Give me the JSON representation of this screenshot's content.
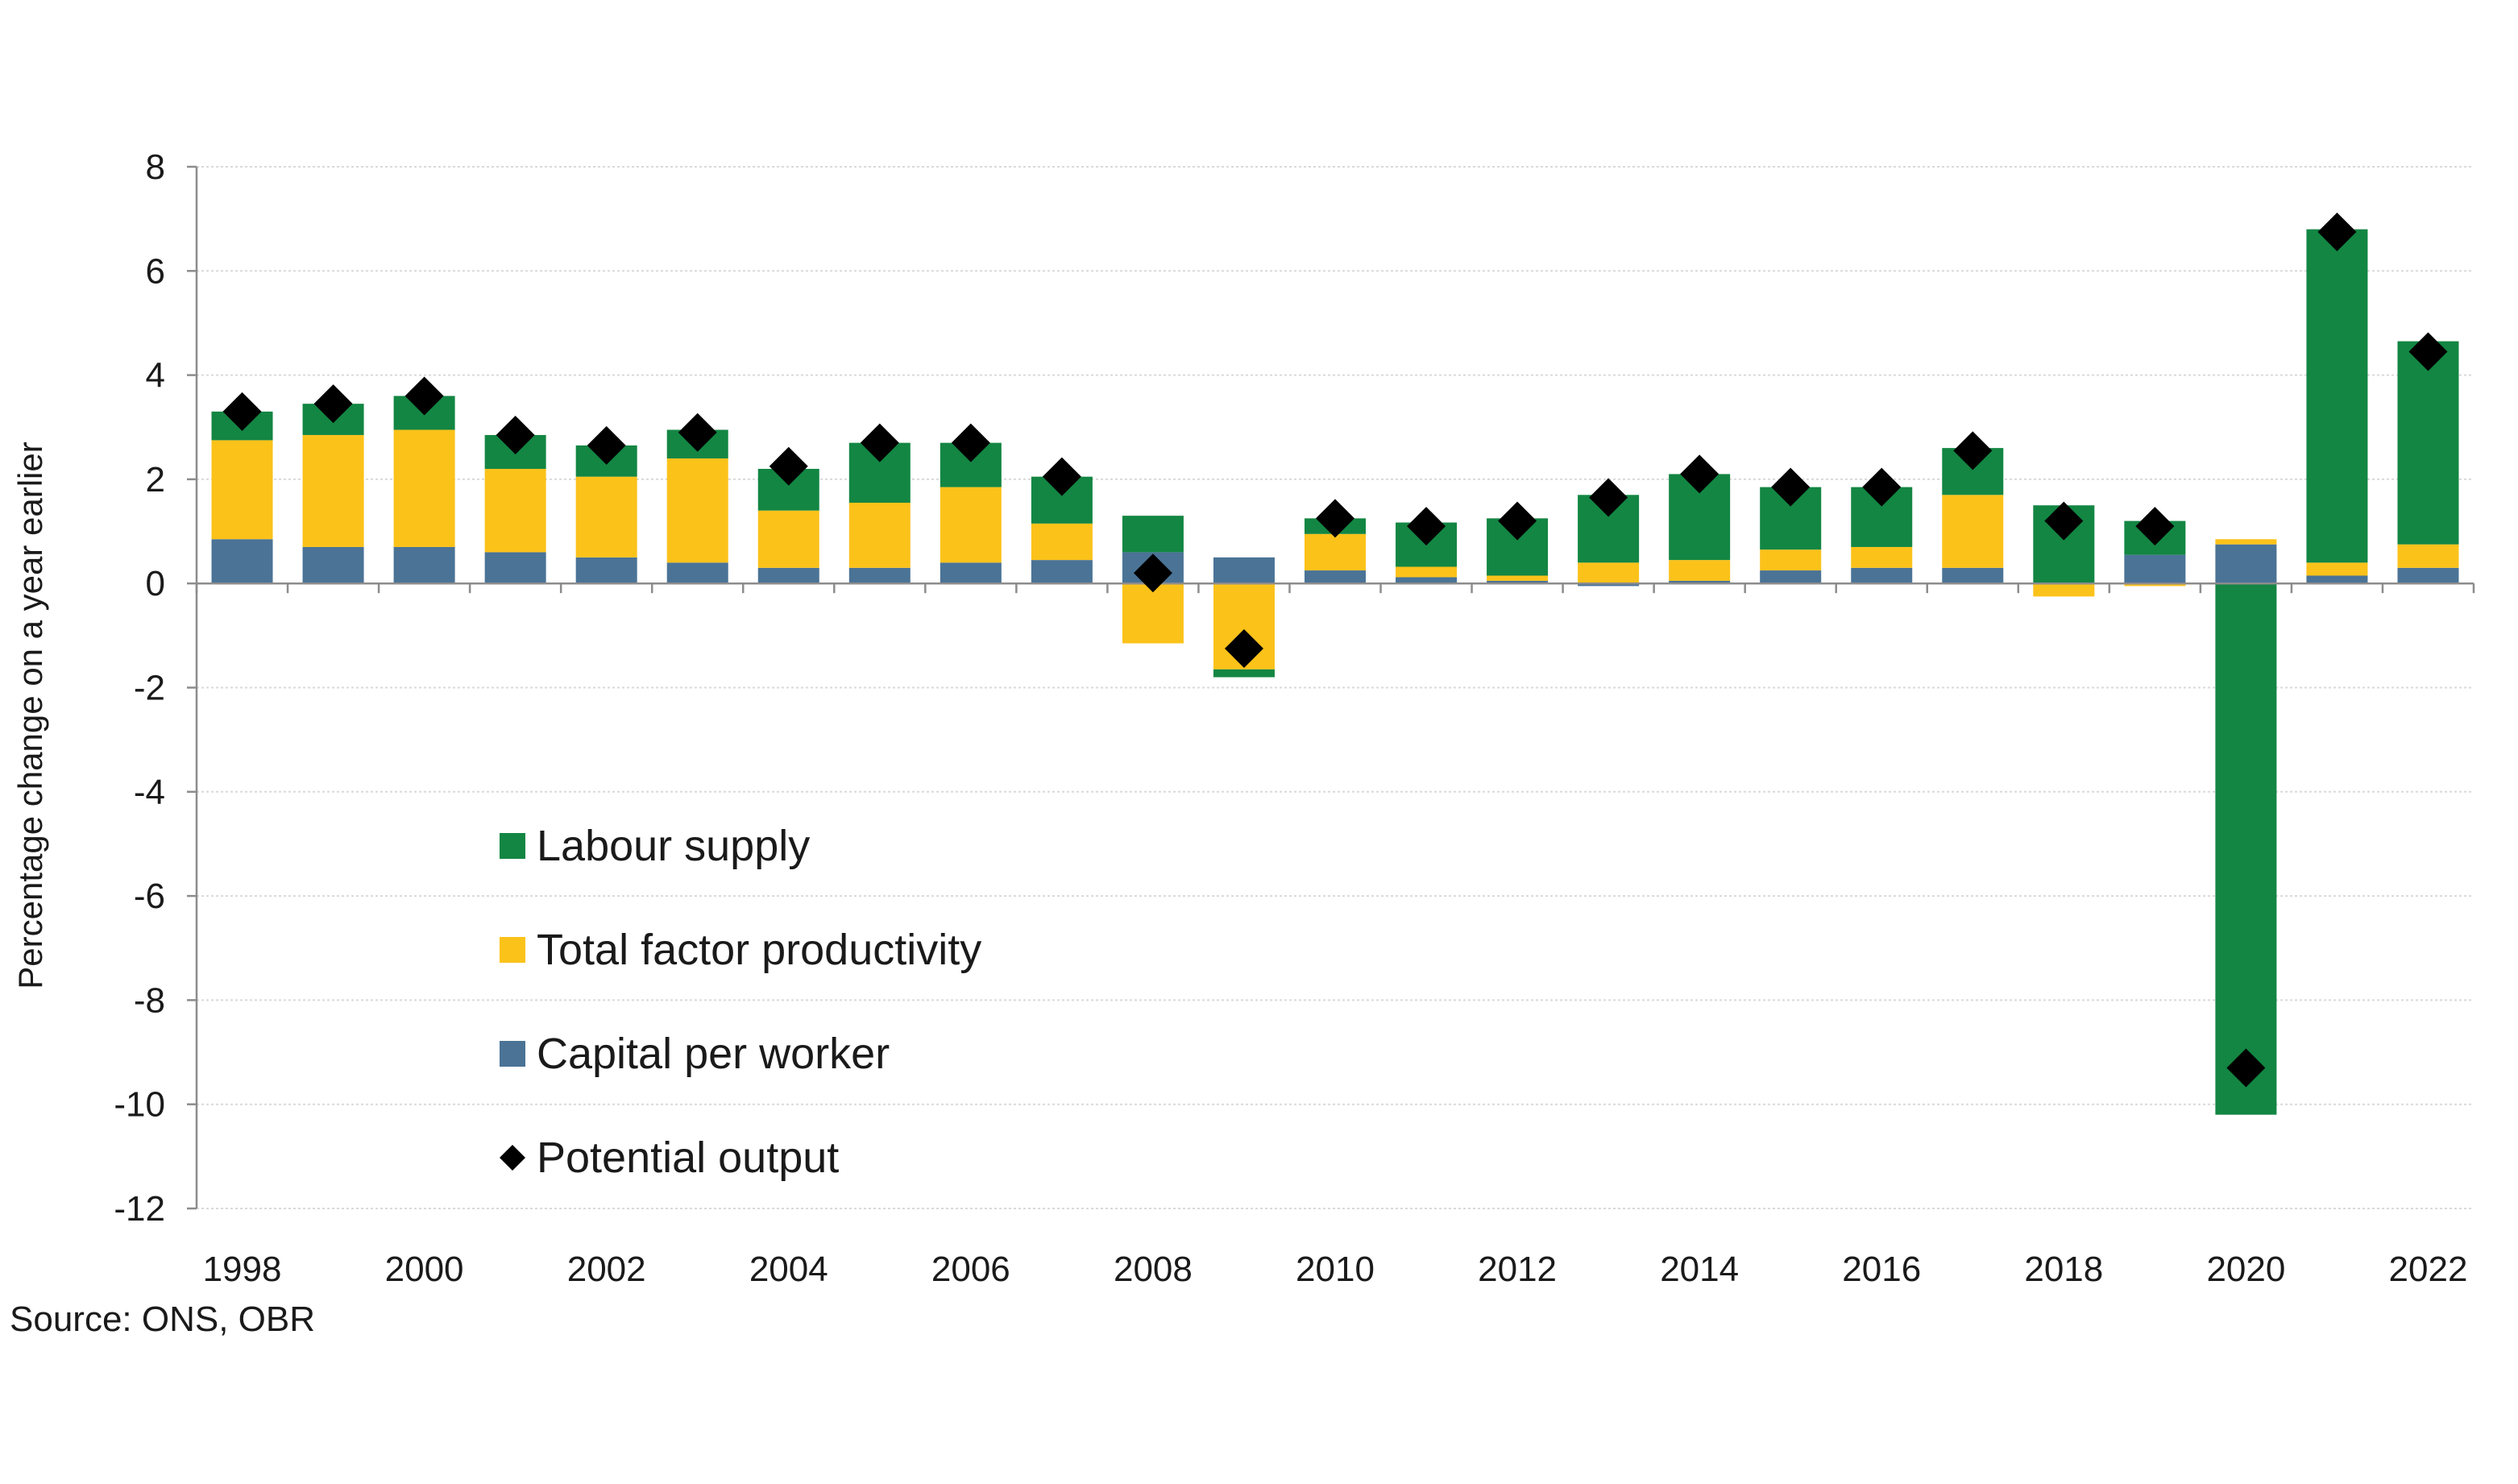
{
  "chart_data": {
    "type": "bar",
    "stacked": true,
    "title": "",
    "xlabel": "",
    "ylabel": "Percentage change on a year earlier",
    "ylim": [
      -12,
      8
    ],
    "y_ticks": [
      8,
      6,
      4,
      2,
      0,
      -2,
      -4,
      -6,
      -8,
      -10,
      -12
    ],
    "x_tick_labels": [
      "1998",
      "2000",
      "2002",
      "2004",
      "2006",
      "2008",
      "2010",
      "2012",
      "2014",
      "2016",
      "2018",
      "2020",
      "2022"
    ],
    "categories": [
      "1998",
      "1999",
      "2000",
      "2001",
      "2002",
      "2003",
      "2004",
      "2005",
      "2006",
      "2007",
      "2008",
      "2009",
      "2010",
      "2011",
      "2012",
      "2013",
      "2014",
      "2015",
      "2016",
      "2017",
      "2018",
      "2019",
      "2020",
      "2021",
      "2022"
    ],
    "grid": true,
    "legend_position": "lower-left",
    "series": [
      {
        "name": "Capital per worker",
        "type": "bar",
        "color": "#4a7396",
        "values": [
          0.85,
          0.7,
          0.7,
          0.6,
          0.5,
          0.4,
          0.3,
          0.3,
          0.4,
          0.45,
          0.6,
          0.5,
          0.25,
          0.12,
          0.05,
          -0.05,
          0.05,
          0.25,
          0.3,
          0.3,
          0.0,
          0.55,
          0.75,
          0.15,
          0.3
        ]
      },
      {
        "name": "Total factor productivity",
        "type": "bar",
        "color": "#fbc21a",
        "values": [
          1.9,
          2.15,
          2.25,
          1.6,
          1.55,
          2.0,
          1.1,
          1.25,
          1.45,
          0.7,
          -1.15,
          -1.65,
          0.7,
          0.2,
          0.1,
          0.4,
          0.4,
          0.4,
          0.4,
          1.4,
          -0.25,
          -0.05,
          0.1,
          0.25,
          0.45
        ]
      },
      {
        "name": "Labour supply",
        "type": "bar",
        "color": "#138643",
        "values": [
          0.55,
          0.6,
          0.65,
          0.65,
          0.6,
          0.55,
          0.8,
          1.15,
          0.85,
          0.9,
          0.7,
          -0.15,
          0.3,
          0.85,
          1.1,
          1.3,
          1.65,
          1.2,
          1.15,
          0.9,
          1.5,
          0.65,
          -10.2,
          6.4,
          3.9
        ]
      },
      {
        "name": "Potential output",
        "type": "marker",
        "color": "#000000",
        "values": [
          3.3,
          3.45,
          3.6,
          2.85,
          2.65,
          2.9,
          2.25,
          2.7,
          2.7,
          2.05,
          0.2,
          -1.25,
          1.25,
          1.1,
          1.2,
          1.65,
          2.1,
          1.85,
          1.85,
          2.55,
          1.2,
          1.1,
          -9.3,
          6.75,
          4.45
        ]
      }
    ],
    "legend_order": [
      "Labour supply",
      "Total factor productivity",
      "Capital per worker",
      "Potential output"
    ]
  },
  "source": "Source: ONS, OBR"
}
